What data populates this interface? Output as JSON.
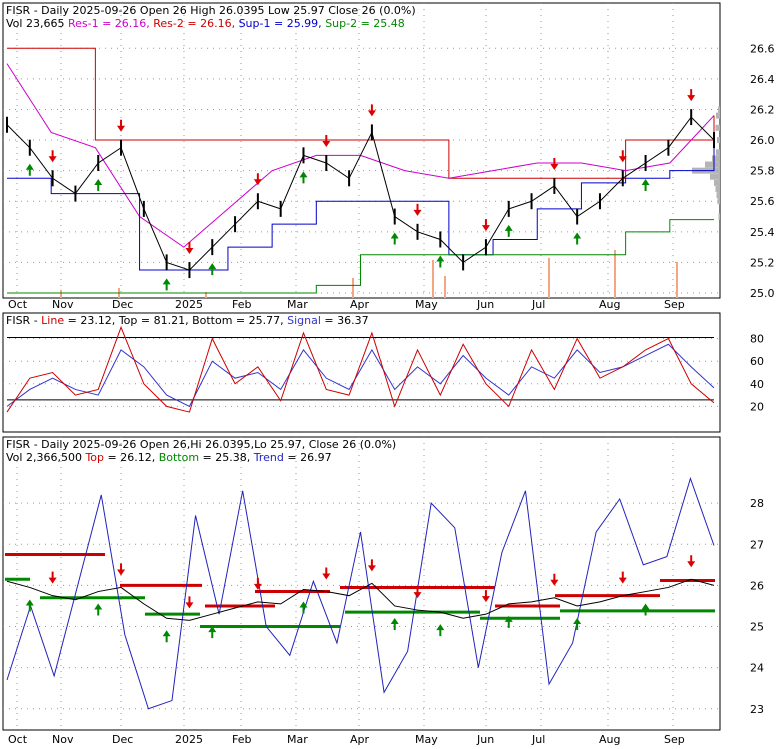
{
  "colors": {
    "up": "#008800",
    "down": "#dd0000",
    "price": "#000000",
    "magenta": "#cc00cc",
    "red": "#cc0000",
    "blue": "#0000cc",
    "green": "#008800",
    "volume_profile": "#b4b4b4",
    "volume_bar": "#f4a582",
    "stoch_line": "#cc0000",
    "stoch_signal": "#3333cc",
    "trend": "#2222bb"
  },
  "panels": [
    {
      "id": "price",
      "header_line1": [
        {
          "text": "FISR - Daily 2025-09-26 Open 26  High 26.0395  Low 25.97  Close 26 (0.0%)",
          "color": "#000000"
        }
      ],
      "header_line2": [
        {
          "text": "Vol 23,665 ",
          "color": "#000000"
        },
        {
          "text": "Res-1 = 26.16, ",
          "color": "#cc00cc"
        },
        {
          "text": "Res-2 = 26.16, ",
          "color": "#cc0000"
        },
        {
          "text": "Sup-1 = 25.99, ",
          "color": "#0000cc"
        },
        {
          "text": "Sup-2 = 25.48",
          "color": "#008800"
        }
      ],
      "ylim": [
        25.0,
        26.7
      ],
      "y_ticks": [
        "26.6",
        "26.4",
        "26.2",
        "26.0",
        "25.8",
        "25.6",
        "25.4",
        "25.2",
        "25.0"
      ],
      "x_ticks": [
        "Oct",
        "Nov",
        "Dec",
        "2025",
        "Feb",
        "Mar",
        "Apr",
        "May",
        "Jun",
        "Jul",
        "Aug",
        "Sep"
      ]
    },
    {
      "id": "stoch",
      "header_line1": [
        {
          "text": "FISR - ",
          "color": "#000000"
        },
        {
          "text": "Line",
          "color": "#cc0000"
        },
        {
          "text": " = 23.12, ",
          "color": "#000000"
        },
        {
          "text": "Top",
          "color": "#000000"
        },
        {
          "text": " = 81.21, ",
          "color": "#000000"
        },
        {
          "text": "Bottom",
          "color": "#000000"
        },
        {
          "text": " = 25.77, ",
          "color": "#000000"
        },
        {
          "text": "Signal",
          "color": "#3333cc"
        },
        {
          "text": " = 36.37",
          "color": "#000000"
        }
      ],
      "ylim": [
        0,
        100
      ],
      "y_ticks": [
        "80",
        "60",
        "40",
        "20"
      ]
    },
    {
      "id": "trend",
      "header_line1": [
        {
          "text": "FISR - Daily 2025-09-26 Open 26,Hi 26.0395,Lo 25.97, Close 26 (0.0%)",
          "color": "#000000"
        }
      ],
      "header_line2": [
        {
          "text": "Vol 2,366,500 ",
          "color": "#000000"
        },
        {
          "text": "Top",
          "color": "#cc0000"
        },
        {
          "text": " = 26.12, ",
          "color": "#000000"
        },
        {
          "text": "Bottom",
          "color": "#008800"
        },
        {
          "text": " = 25.38, ",
          "color": "#000000"
        },
        {
          "text": "Trend",
          "color": "#2222bb"
        },
        {
          "text": " = 26.97",
          "color": "#000000"
        }
      ],
      "ylim": [
        22.8,
        29.0
      ],
      "y_ticks": [
        "28",
        "27",
        "26",
        "25",
        "24",
        "23"
      ],
      "x_ticks": [
        "Oct",
        "Nov",
        "Dec",
        "2025",
        "Feb",
        "Mar",
        "Apr",
        "May",
        "Jun",
        "Jul",
        "Aug",
        "Sep"
      ]
    }
  ],
  "chart_data": {
    "type": "line",
    "title": "FISR - Daily 2025-09-26",
    "x_categories": [
      "Oct",
      "Nov",
      "Dec",
      "2025",
      "Feb",
      "Mar",
      "Apr",
      "May",
      "Jun",
      "Jul",
      "Aug",
      "Sep"
    ],
    "close_series": {
      "name": "Close",
      "values": [
        26.1,
        25.95,
        25.75,
        25.65,
        25.85,
        25.95,
        25.55,
        25.2,
        25.15,
        25.3,
        25.45,
        25.6,
        25.55,
        25.9,
        25.85,
        25.75,
        26.05,
        25.5,
        25.4,
        25.35,
        25.2,
        25.3,
        25.55,
        25.6,
        25.7,
        25.5,
        25.6,
        25.75,
        25.85,
        25.95,
        26.15,
        26.0
      ]
    },
    "res1": {
      "name": "Res-1",
      "values": [
        26.5,
        26.05,
        25.95,
        25.5,
        25.3,
        25.55,
        25.8,
        25.9,
        25.9,
        25.8,
        25.75,
        25.8,
        25.85,
        25.85,
        25.8,
        25.85,
        26.16
      ]
    },
    "res2": {
      "name": "Res-2",
      "values": [
        26.6,
        26.6,
        26.0,
        26.0,
        26.0,
        26.0,
        26.0,
        26.0,
        26.0,
        26.0,
        25.75,
        25.75,
        25.75,
        25.75,
        26.0,
        26.0,
        26.16
      ]
    },
    "sup1": {
      "name": "Sup-1",
      "values": [
        25.75,
        25.65,
        25.65,
        25.15,
        25.15,
        25.3,
        25.45,
        25.6,
        25.6,
        25.6,
        25.25,
        25.35,
        25.55,
        25.72,
        25.75,
        25.8,
        25.99
      ]
    },
    "sup2": {
      "name": "Sup-2",
      "values": [
        25.0,
        25.0,
        25.0,
        25.0,
        25.0,
        25.0,
        25.0,
        25.05,
        25.25,
        25.25,
        25.25,
        25.25,
        25.25,
        25.25,
        25.4,
        25.48,
        25.48
      ]
    },
    "stoch_line": {
      "name": "Line",
      "values": [
        15,
        45,
        50,
        30,
        35,
        90,
        40,
        20,
        15,
        80,
        40,
        55,
        25,
        85,
        35,
        30,
        85,
        20,
        70,
        30,
        75,
        40,
        20,
        70,
        35,
        80,
        45,
        55,
        70,
        80,
        40,
        23.12
      ]
    },
    "stoch_signal": {
      "name": "Signal",
      "values": [
        20,
        35,
        45,
        35,
        30,
        70,
        55,
        30,
        20,
        60,
        45,
        50,
        35,
        70,
        45,
        35,
        70,
        35,
        55,
        40,
        65,
        45,
        30,
        55,
        45,
        70,
        50,
        55,
        65,
        75,
        55,
        36.37
      ]
    },
    "trend_line": {
      "name": "Trend",
      "values": [
        23.7,
        25.5,
        23.8,
        26.0,
        28.2,
        24.8,
        23.0,
        23.2,
        27.7,
        25.3,
        28.3,
        25.0,
        24.3,
        26.1,
        24.6,
        27.3,
        23.4,
        24.4,
        28.0,
        27.4,
        24.0,
        26.8,
        28.3,
        23.6,
        24.6,
        27.3,
        28.1,
        26.5,
        26.7,
        28.6,
        26.97
      ]
    },
    "latest": {
      "open": 26,
      "high": 26.0395,
      "low": 25.97,
      "close": 26,
      "volume_price_panel": 23665,
      "volume_trend_panel": 2366500,
      "stoch_top": 81.21,
      "stoch_bottom": 25.77,
      "trend_top": 26.12,
      "trend_bottom": 25.38,
      "trend": 26.97
    }
  }
}
